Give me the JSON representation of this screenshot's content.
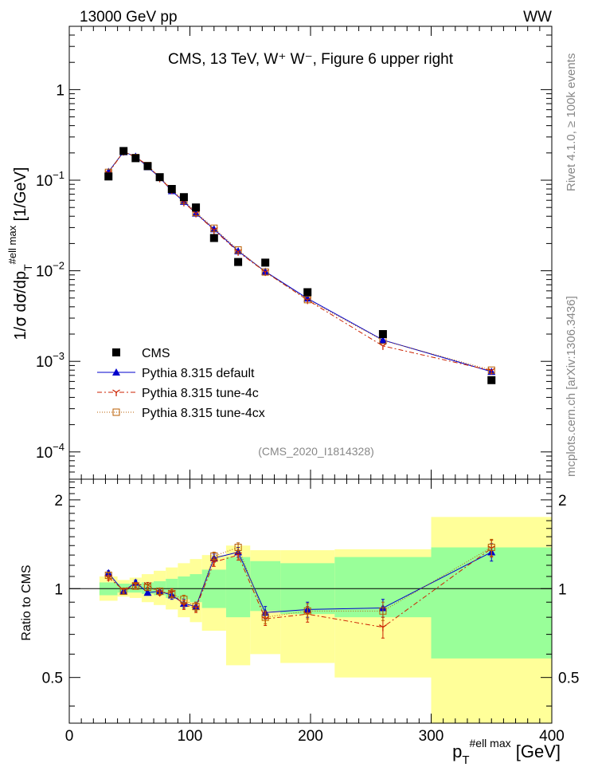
{
  "header": {
    "energy_label": "13000 GeV pp",
    "process_label": "WW"
  },
  "side_text": {
    "rivet": "Rivet 4.1.0, ≥ 100k events",
    "site": "mcplots.cern.ch [arXiv:1306.3436]"
  },
  "chart_data": {
    "type": "line",
    "title": "CMS, 13 TeV, W⁺ W⁻, Figure 6 upper right",
    "analysis_id": "(CMS_2020_I1814328)",
    "xlabel": "p_T^{#ell max} [GeV]",
    "ylabel": "1/σ dσ/dp_T^{#ell max} [1/GeV]",
    "ratio_ylabel": "Ratio to CMS",
    "xlim": [
      0,
      400
    ],
    "ylim": [
      5e-05,
      5
    ],
    "ratio_ylim": [
      0.35,
      2.35
    ],
    "x_ticks": [
      "0",
      "100",
      "200",
      "300",
      "400"
    ],
    "y_ticks": [
      {
        "base": "1",
        "exp": ""
      },
      {
        "base": "10",
        "exp": "−1"
      },
      {
        "base": "10",
        "exp": "−2"
      },
      {
        "base": "10",
        "exp": "−3"
      },
      {
        "base": "10",
        "exp": "−4"
      }
    ],
    "ratio_ticks": [
      "2",
      "1",
      "0.5"
    ],
    "bin_edges": [
      25,
      40,
      50,
      60,
      70,
      80,
      90,
      100,
      110,
      130,
      150,
      175,
      220,
      300,
      400
    ],
    "bin_centers": [
      32.5,
      45,
      55,
      65,
      75,
      85,
      95,
      105,
      120,
      140,
      162.5,
      197.5,
      260,
      350
    ],
    "data": {
      "name": "CMS",
      "values": [
        0.11,
        0.21,
        0.175,
        0.143,
        0.108,
        0.08,
        0.065,
        0.05,
        0.023,
        0.0125,
        0.0123,
        0.0058,
        0.002,
        0.00062
      ]
    },
    "band_stat_lo": [
      0.95,
      0.97,
      0.97,
      0.96,
      0.95,
      0.93,
      0.92,
      0.9,
      0.86,
      0.8,
      0.84,
      0.82,
      0.8,
      0.58
    ],
    "band_stat_hi": [
      1.05,
      1.04,
      1.04,
      1.05,
      1.06,
      1.08,
      1.1,
      1.12,
      1.16,
      1.28,
      1.24,
      1.22,
      1.28,
      1.38
    ],
    "band_tot_lo": [
      0.91,
      0.94,
      0.93,
      0.9,
      0.88,
      0.85,
      0.8,
      0.77,
      0.72,
      0.55,
      0.6,
      0.56,
      0.5,
      0.35
    ],
    "band_tot_hi": [
      1.1,
      1.07,
      1.09,
      1.12,
      1.15,
      1.18,
      1.22,
      1.26,
      1.3,
      1.4,
      1.35,
      1.35,
      1.36,
      1.75
    ],
    "series": [
      {
        "name": "Pythia 8.315 default",
        "color": "#0000cc",
        "marker": "triangle",
        "dash": "",
        "values": [
          0.124,
          0.205,
          0.183,
          0.14,
          0.107,
          0.076,
          0.058,
          0.043,
          0.0288,
          0.0165,
          0.0098,
          0.00495,
          0.00172,
          0.00077
        ],
        "ratio": [
          1.13,
          0.98,
          1.05,
          0.97,
          0.98,
          0.95,
          0.89,
          0.87,
          1.27,
          1.33,
          0.83,
          0.85,
          0.86,
          1.33
        ],
        "ratio_err": [
          0.02,
          0.015,
          0.02,
          0.02,
          0.02,
          0.03,
          0.03,
          0.03,
          0.04,
          0.05,
          0.04,
          0.05,
          0.06,
          0.09
        ]
      },
      {
        "name": "Pythia 8.315 tune-4c",
        "color": "#cc2200",
        "marker": "star",
        "dash": "6,3,2,3",
        "values": [
          0.12,
          0.207,
          0.18,
          0.147,
          0.105,
          0.078,
          0.057,
          0.043,
          0.0282,
          0.0162,
          0.0097,
          0.00475,
          0.00148,
          0.00079
        ],
        "ratio": [
          1.09,
          0.99,
          1.03,
          1.03,
          0.97,
          0.97,
          0.88,
          0.86,
          1.23,
          1.3,
          0.79,
          0.82,
          0.74,
          1.37
        ],
        "ratio_err": [
          0.02,
          0.015,
          0.02,
          0.02,
          0.02,
          0.03,
          0.03,
          0.03,
          0.04,
          0.05,
          0.04,
          0.05,
          0.06,
          0.09
        ]
      },
      {
        "name": "Pythia 8.315 tune-4cx",
        "color": "#b85c00",
        "marker": "square",
        "dash": "1,2",
        "values": [
          0.122,
          0.21,
          0.178,
          0.145,
          0.108,
          0.079,
          0.06,
          0.044,
          0.0295,
          0.017,
          0.0097,
          0.0048,
          0.0017,
          0.0008
        ],
        "ratio": [
          1.11,
          0.98,
          1.02,
          1.01,
          0.98,
          0.96,
          0.92,
          0.87,
          1.29,
          1.38,
          0.8,
          0.84,
          0.84,
          1.38
        ],
        "ratio_err": [
          0.02,
          0.015,
          0.02,
          0.02,
          0.02,
          0.03,
          0.03,
          0.03,
          0.04,
          0.05,
          0.04,
          0.05,
          0.06,
          0.09
        ]
      }
    ]
  }
}
